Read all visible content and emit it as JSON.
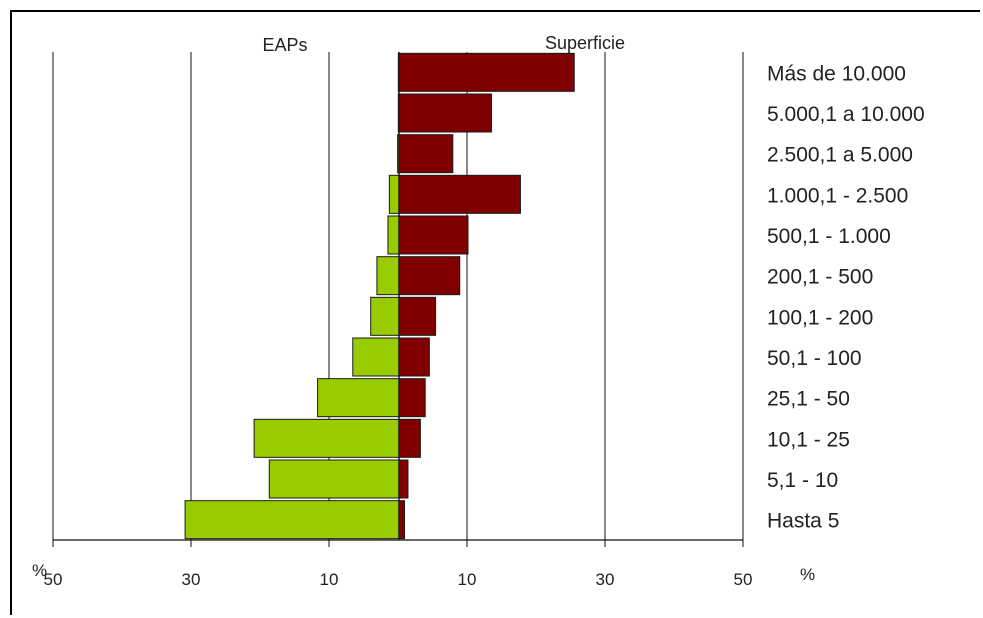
{
  "chart_data": {
    "type": "bar",
    "subtype": "population-pyramid",
    "title": "",
    "left_header": "EAPs",
    "right_header": "Superficie",
    "unit_left": "%",
    "unit_right": "%",
    "xlim": [
      -50,
      50
    ],
    "x_ticks": [
      -50,
      -30,
      -10,
      10,
      30,
      50
    ],
    "x_tick_labels": [
      "50",
      "30",
      "10",
      "10",
      "30",
      "50"
    ],
    "grid": true,
    "categories": [
      "Más de 10.000",
      "5.000,1 a 10.000",
      "2.500,1 a 5.000",
      "1.000,1 - 2.500",
      "500,1 - 1.000",
      "200,1 - 500",
      "100,1 - 200",
      "50,1 - 100",
      "25,1 - 50",
      "10,1 - 25",
      "5,1 - 10",
      "Hasta 5"
    ],
    "series": [
      {
        "name": "EAPs",
        "side": "left",
        "color": "#99cc00",
        "values": [
          0.1,
          0.1,
          0.2,
          1.4,
          1.6,
          3.2,
          4.1,
          6.7,
          11.8,
          21,
          18.8,
          31
        ]
      },
      {
        "name": "Superficie",
        "side": "right",
        "color": "#800000",
        "values": [
          25.4,
          13.4,
          7.8,
          17.6,
          10,
          8.8,
          5.3,
          4.4,
          3.8,
          3.1,
          1.3,
          0.8
        ]
      }
    ]
  }
}
